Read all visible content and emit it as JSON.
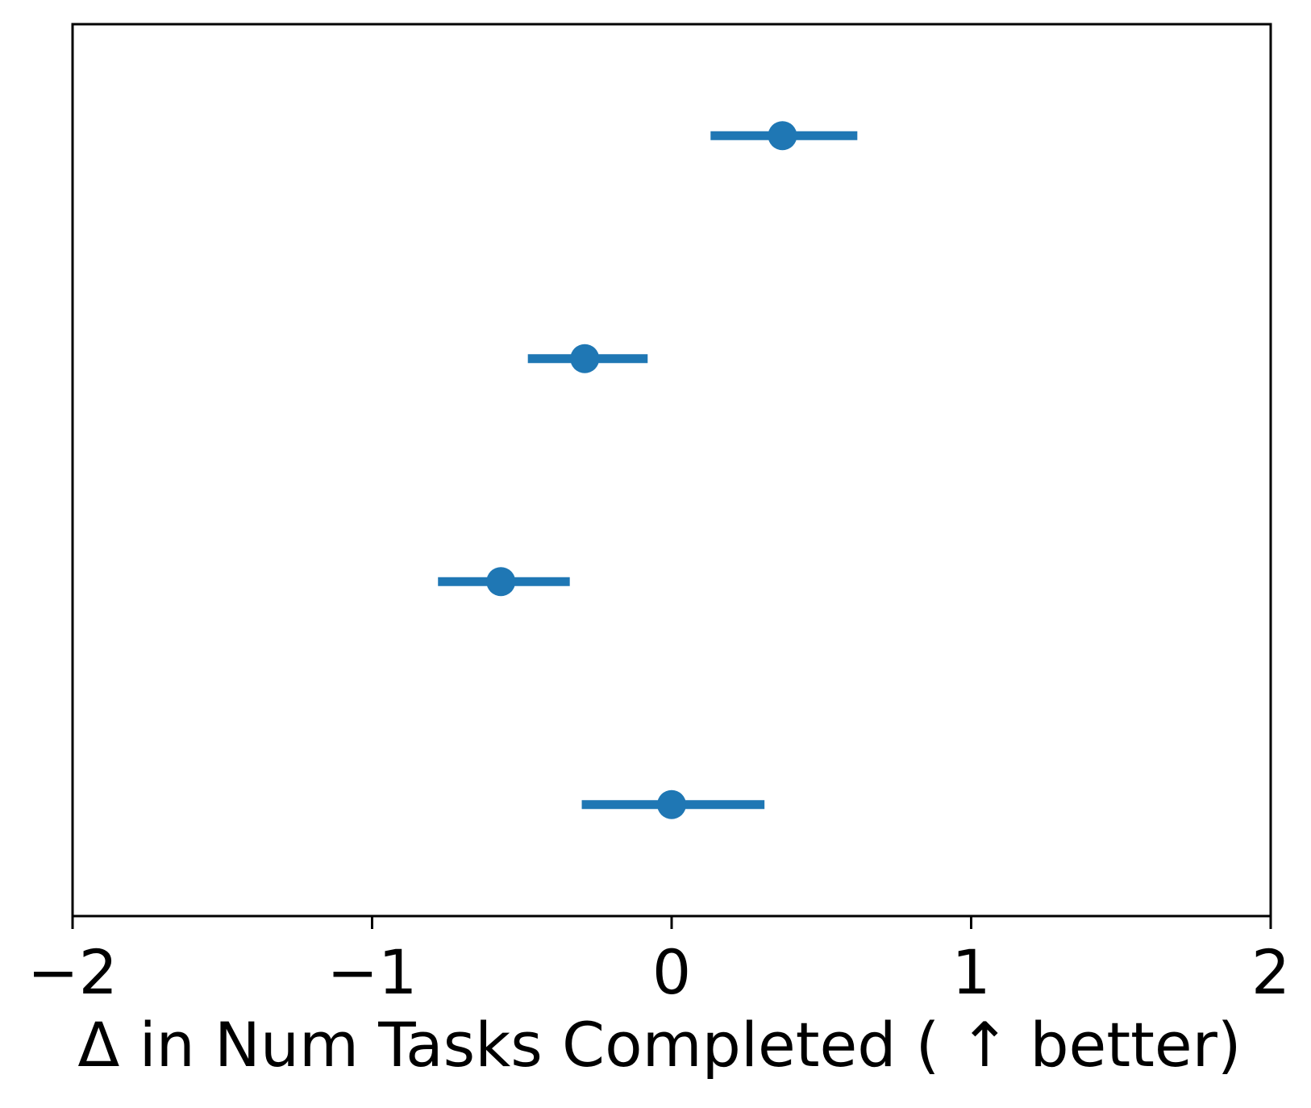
{
  "chart_data": {
    "type": "scatter",
    "title": "",
    "xlabel": "Δ in Num Tasks Completed ( ↑  better)",
    "ylabel": "",
    "xlim": [
      -2,
      2
    ],
    "xticks": [
      -2,
      -1,
      0,
      1,
      2
    ],
    "xtick_labels": [
      "−2",
      "−1",
      "0",
      "1",
      "2"
    ],
    "grid": false,
    "legend": "none",
    "series_color": "#1f77b4",
    "points": [
      {
        "x": 0.37,
        "xerr_low": 0.13,
        "xerr_high": 0.62
      },
      {
        "x": -0.29,
        "xerr_low": -0.48,
        "xerr_high": -0.08
      },
      {
        "x": -0.57,
        "xerr_low": -0.78,
        "xerr_high": -0.34
      },
      {
        "x": 0.0,
        "xerr_low": -0.3,
        "xerr_high": 0.31
      }
    ]
  }
}
